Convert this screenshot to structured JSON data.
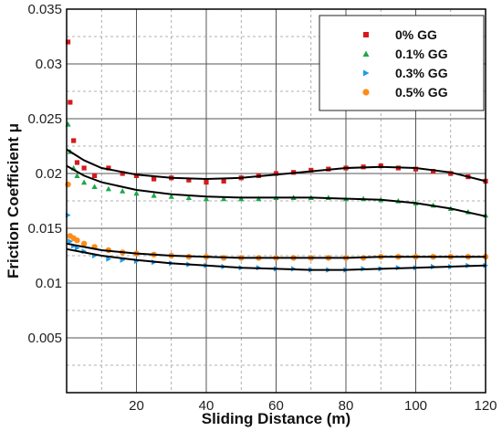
{
  "chart_data": {
    "type": "scatter",
    "xlabel": "Sliding Distance (m)",
    "ylabel": "Friction Coefficient μ",
    "xlim": [
      0,
      120
    ],
    "ylim": [
      0,
      0.035
    ],
    "xticks": [
      20,
      40,
      60,
      80,
      100,
      120
    ],
    "xtick_labels": [
      "20",
      "40",
      "60",
      "80",
      "100",
      "120"
    ],
    "yticks": [
      0.005,
      0.01,
      0.015,
      0.02,
      0.025,
      0.03,
      0.035
    ],
    "ytick_labels": [
      "0.005",
      "0.01",
      "0.015",
      "0.02",
      "0.025",
      "0.03",
      "0.035"
    ],
    "grid": true,
    "minor_grid": "dashed",
    "legend_position": "top-right",
    "series": [
      {
        "name": "0% GG",
        "marker": "square",
        "color": "#d7191c",
        "x": [
          0.4,
          1,
          2,
          3,
          5,
          8,
          12,
          16,
          20,
          25,
          30,
          35,
          40,
          45,
          50,
          55,
          60,
          65,
          70,
          75,
          80,
          85,
          90,
          95,
          100,
          105,
          110,
          115,
          120
        ],
        "y": [
          0.032,
          0.0265,
          0.023,
          0.021,
          0.0205,
          0.0198,
          0.0205,
          0.02,
          0.0198,
          0.0195,
          0.0196,
          0.0194,
          0.0192,
          0.0193,
          0.0196,
          0.0198,
          0.02,
          0.0201,
          0.0203,
          0.0204,
          0.0205,
          0.0206,
          0.0207,
          0.0205,
          0.0204,
          0.0202,
          0.02,
          0.0197,
          0.0193
        ]
      },
      {
        "name": "0.1% GG",
        "marker": "triangle",
        "color": "#1aa84b",
        "x": [
          0.4,
          1,
          2,
          3,
          5,
          8,
          12,
          16,
          20,
          25,
          30,
          35,
          40,
          45,
          50,
          55,
          60,
          65,
          70,
          75,
          80,
          85,
          90,
          95,
          100,
          105,
          110,
          115,
          120
        ],
        "y": [
          0.0245,
          0.022,
          0.0205,
          0.0198,
          0.0192,
          0.0188,
          0.0186,
          0.0184,
          0.0182,
          0.018,
          0.0179,
          0.0178,
          0.0177,
          0.0177,
          0.0177,
          0.0177,
          0.0178,
          0.0178,
          0.0178,
          0.0178,
          0.0177,
          0.0177,
          0.0176,
          0.0175,
          0.0173,
          0.0171,
          0.0168,
          0.0165,
          0.0162
        ]
      },
      {
        "name": "0.3% GG",
        "marker": "triangle-right",
        "color": "#1e9be8",
        "x": [
          0.4,
          1,
          2,
          3,
          5,
          8,
          12,
          16,
          20,
          25,
          30,
          35,
          40,
          45,
          50,
          55,
          60,
          65,
          70,
          75,
          80,
          85,
          90,
          95,
          100,
          105,
          110,
          115,
          120
        ],
        "y": [
          0.0162,
          0.0138,
          0.0134,
          0.0132,
          0.0129,
          0.0125,
          0.0122,
          0.0121,
          0.012,
          0.0119,
          0.0118,
          0.0117,
          0.0116,
          0.0115,
          0.0114,
          0.0114,
          0.0113,
          0.0113,
          0.0112,
          0.0112,
          0.0112,
          0.0113,
          0.0113,
          0.0114,
          0.0114,
          0.0115,
          0.0115,
          0.0116,
          0.0116
        ]
      },
      {
        "name": "0.5% GG",
        "marker": "circle",
        "color": "#ff8c1a",
        "x": [
          0.4,
          1,
          2,
          3,
          5,
          8,
          12,
          16,
          20,
          25,
          30,
          35,
          40,
          45,
          50,
          55,
          60,
          65,
          70,
          75,
          80,
          85,
          90,
          95,
          100,
          105,
          110,
          115,
          120
        ],
        "y": [
          0.019,
          0.0143,
          0.0141,
          0.0139,
          0.0136,
          0.0133,
          0.013,
          0.0128,
          0.0127,
          0.0126,
          0.0125,
          0.0124,
          0.0124,
          0.0123,
          0.0123,
          0.0123,
          0.0123,
          0.0123,
          0.0123,
          0.0123,
          0.0123,
          0.0123,
          0.0124,
          0.0124,
          0.0124,
          0.0124,
          0.0124,
          0.0124,
          0.0124
        ]
      }
    ],
    "fit_lines": [
      {
        "color": "#000000",
        "x": [
          0,
          5,
          10,
          20,
          30,
          40,
          50,
          60,
          70,
          80,
          90,
          100,
          110,
          120
        ],
        "y": [
          0.0222,
          0.0212,
          0.0205,
          0.0199,
          0.0196,
          0.0195,
          0.0196,
          0.0199,
          0.0202,
          0.0205,
          0.0206,
          0.0205,
          0.0201,
          0.0193
        ]
      },
      {
        "color": "#000000",
        "x": [
          0,
          5,
          10,
          20,
          30,
          40,
          50,
          60,
          70,
          80,
          90,
          100,
          110,
          120
        ],
        "y": [
          0.0207,
          0.0198,
          0.0192,
          0.0185,
          0.0181,
          0.0179,
          0.0178,
          0.0178,
          0.0178,
          0.0177,
          0.0176,
          0.0173,
          0.0168,
          0.0161
        ]
      },
      {
        "color": "#000000",
        "x": [
          0,
          5,
          10,
          20,
          30,
          40,
          50,
          60,
          70,
          80,
          90,
          100,
          110,
          120
        ],
        "y": [
          0.0131,
          0.0128,
          0.0125,
          0.0121,
          0.0118,
          0.0116,
          0.0114,
          0.0113,
          0.0112,
          0.0112,
          0.0113,
          0.0114,
          0.0115,
          0.0116
        ]
      },
      {
        "color": "#000000",
        "x": [
          0,
          5,
          10,
          20,
          30,
          40,
          50,
          60,
          70,
          80,
          90,
          100,
          110,
          120
        ],
        "y": [
          0.0136,
          0.0133,
          0.013,
          0.0127,
          0.0125,
          0.0124,
          0.0123,
          0.0123,
          0.0123,
          0.0123,
          0.0124,
          0.0124,
          0.0124,
          0.0124
        ]
      }
    ]
  }
}
